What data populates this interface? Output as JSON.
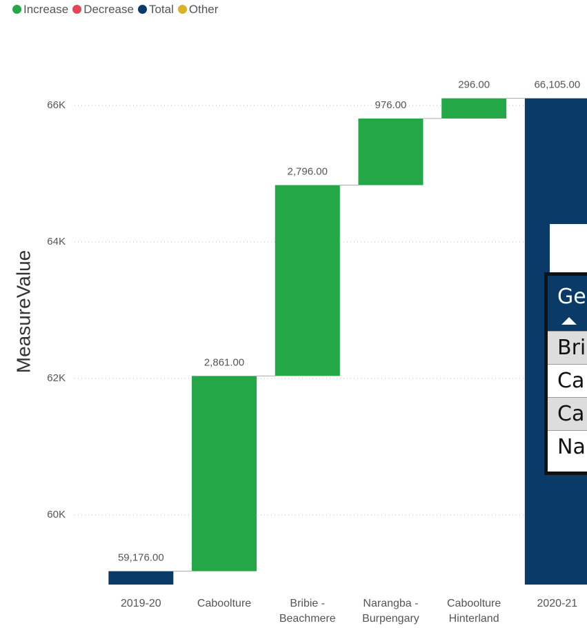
{
  "chart_data": {
    "type": "waterfall",
    "legend": [
      {
        "name": "Increase",
        "color": "#24a847"
      },
      {
        "name": "Decrease",
        "color": "#e0475a"
      },
      {
        "name": "Total",
        "color": "#0a3a68"
      },
      {
        "name": "Other",
        "color": "#d8b325"
      }
    ],
    "y_label": "MeasureValue",
    "categories": [
      "2019-20",
      "Caboolture",
      "Bribie - Beachmere",
      "Narangba - Burpengary",
      "Caboolture Hinterland",
      "2020-21"
    ],
    "kinds": [
      "Total",
      "Increase",
      "Increase",
      "Increase",
      "Increase",
      "Total"
    ],
    "values": [
      59176,
      2861,
      2796,
      976,
      296,
      66105
    ],
    "value_labels": [
      "59,176.00",
      "2,861.00",
      "2,796.00",
      "976.00",
      "296.00",
      "66,105.00"
    ],
    "ylim": [
      58980,
      66600
    ],
    "yticks": [
      {
        "value": 60000,
        "label": "60K"
      },
      {
        "value": 62000,
        "label": "62K"
      },
      {
        "value": 64000,
        "label": "64K"
      },
      {
        "value": 66000,
        "label": "66K"
      }
    ],
    "grid": true
  },
  "overlay": {
    "header": "Ge",
    "rows": [
      "Bri",
      "Ca",
      "Ca",
      "Na"
    ]
  }
}
